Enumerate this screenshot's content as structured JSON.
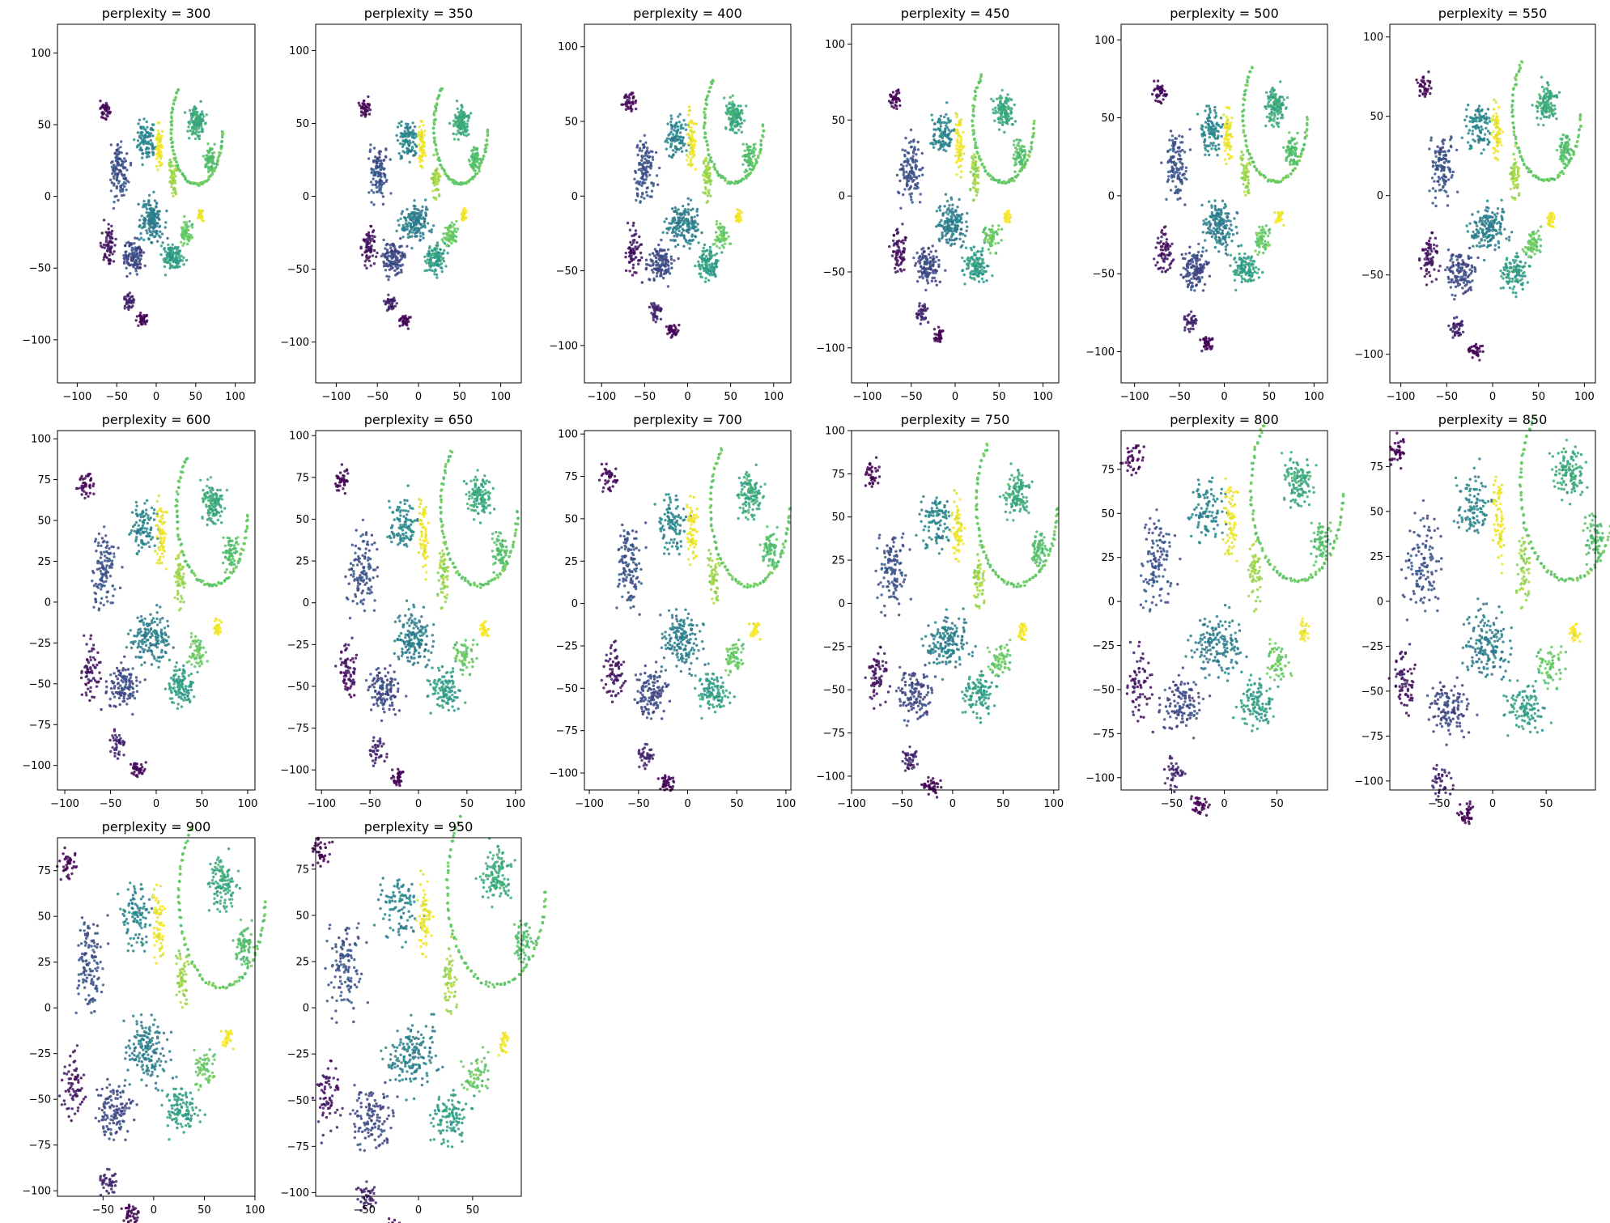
{
  "figure": {
    "colormap": "viridis",
    "colors": [
      "#440154",
      "#3b528b",
      "#21918c",
      "#5ec962",
      "#fde725"
    ]
  },
  "chart_data": [
    {
      "type": "scatter",
      "title": "perplexity = 300",
      "xlim": [
        -125,
        125
      ],
      "ylim": [
        -130,
        120
      ],
      "xticks": [
        -100,
        -50,
        0,
        50,
        100
      ],
      "yticks": [
        -100,
        -50,
        0,
        50,
        100
      ],
      "tick_labels_x": [
        "−100",
        "−50",
        "0",
        "50",
        "100"
      ],
      "tick_labels_y": [
        "−100",
        "−50",
        "0",
        "50",
        "100"
      ],
      "grid": false,
      "legend": "none"
    },
    {
      "type": "scatter",
      "title": "perplexity = 350",
      "xlim": [
        -125,
        125
      ],
      "ylim": [
        -128,
        118
      ],
      "xticks": [
        -100,
        -50,
        0,
        50,
        100
      ],
      "yticks": [
        -100,
        -50,
        0,
        50,
        100
      ],
      "tick_labels_x": [
        "−100",
        "−50",
        "0",
        "50",
        "100"
      ],
      "tick_labels_y": [
        "−100",
        "−50",
        "0",
        "50",
        "100"
      ],
      "grid": false,
      "legend": "none"
    },
    {
      "type": "scatter",
      "title": "perplexity = 400",
      "xlim": [
        -120,
        120
      ],
      "ylim": [
        -125,
        115
      ],
      "xticks": [
        -100,
        -50,
        0,
        50,
        100
      ],
      "yticks": [
        -100,
        -50,
        0,
        50,
        100
      ],
      "tick_labels_x": [
        "−100",
        "−50",
        "0",
        "50",
        "100"
      ],
      "tick_labels_y": [
        "−100",
        "−50",
        "0",
        "50",
        "100"
      ],
      "grid": false,
      "legend": "none"
    },
    {
      "type": "scatter",
      "title": "perplexity = 450",
      "xlim": [
        -118,
        118
      ],
      "ylim": [
        -123,
        113
      ],
      "xticks": [
        -100,
        -50,
        0,
        50,
        100
      ],
      "yticks": [
        -100,
        -50,
        0,
        50,
        100
      ],
      "tick_labels_x": [
        "−100",
        "−50",
        "0",
        "50",
        "100"
      ],
      "tick_labels_y": [
        "−100",
        "−50",
        "0",
        "50",
        "100"
      ],
      "grid": false,
      "legend": "none"
    },
    {
      "type": "scatter",
      "title": "perplexity = 500",
      "xlim": [
        -115,
        115
      ],
      "ylim": [
        -120,
        110
      ],
      "xticks": [
        -100,
        -50,
        0,
        50,
        100
      ],
      "yticks": [
        -100,
        -50,
        0,
        50,
        100
      ],
      "tick_labels_x": [
        "−100",
        "−50",
        "0",
        "50",
        "100"
      ],
      "tick_labels_y": [
        "−100",
        "−50",
        "0",
        "50",
        "100"
      ],
      "grid": false,
      "legend": "none"
    },
    {
      "type": "scatter",
      "title": "perplexity = 550",
      "xlim": [
        -112,
        112
      ],
      "ylim": [
        -118,
        108
      ],
      "xticks": [
        -100,
        -50,
        0,
        50,
        100
      ],
      "yticks": [
        -100,
        -50,
        0,
        50,
        100
      ],
      "tick_labels_x": [
        "−100",
        "−50",
        "0",
        "50",
        "100"
      ],
      "tick_labels_y": [
        "−100",
        "−50",
        "0",
        "50",
        "100"
      ],
      "grid": false,
      "legend": "none"
    },
    {
      "type": "scatter",
      "title": "perplexity = 600",
      "xlim": [
        -108,
        108
      ],
      "ylim": [
        -115,
        105
      ],
      "xticks": [
        -100,
        -50,
        0,
        50,
        100
      ],
      "yticks": [
        -100,
        -75,
        -50,
        -25,
        0,
        25,
        50,
        75,
        100
      ],
      "tick_labels_x": [
        "−100",
        "−50",
        "0",
        "50",
        "100"
      ],
      "tick_labels_y": [
        "−100",
        "−75",
        "−50",
        "−25",
        "0",
        "25",
        "50",
        "75",
        "100"
      ],
      "grid": false,
      "legend": "none"
    },
    {
      "type": "scatter",
      "title": "perplexity = 650",
      "xlim": [
        -106,
        106
      ],
      "ylim": [
        -112,
        103
      ],
      "xticks": [
        -100,
        -50,
        0,
        50,
        100
      ],
      "yticks": [
        -100,
        -75,
        -50,
        -25,
        0,
        25,
        50,
        75,
        100
      ],
      "tick_labels_x": [
        "−100",
        "−50",
        "0",
        "50",
        "100"
      ],
      "tick_labels_y": [
        "−100",
        "−75",
        "−50",
        "−25",
        "0",
        "25",
        "50",
        "75",
        "100"
      ],
      "grid": false,
      "legend": "none"
    },
    {
      "type": "scatter",
      "title": "perplexity = 700",
      "xlim": [
        -105,
        105
      ],
      "ylim": [
        -110,
        102
      ],
      "xticks": [
        -100,
        -50,
        0,
        50,
        100
      ],
      "yticks": [
        -100,
        -75,
        -50,
        -25,
        0,
        25,
        50,
        75,
        100
      ],
      "tick_labels_x": [
        "−100",
        "−50",
        "0",
        "50",
        "100"
      ],
      "tick_labels_y": [
        "−100",
        "−75",
        "−50",
        "−25",
        "0",
        "25",
        "50",
        "75",
        "100"
      ],
      "grid": false,
      "legend": "none"
    },
    {
      "type": "scatter",
      "title": "perplexity = 750",
      "xlim": [
        -100,
        105
      ],
      "ylim": [
        -108,
        100
      ],
      "xticks": [
        -100,
        -50,
        0,
        50,
        100
      ],
      "yticks": [
        -100,
        -75,
        -50,
        -25,
        0,
        25,
        50,
        75,
        100
      ],
      "tick_labels_x": [
        "−100",
        "−50",
        "0",
        "50",
        "100"
      ],
      "tick_labels_y": [
        "−100",
        "−75",
        "−50",
        "−25",
        "0",
        "25",
        "50",
        "75",
        "100"
      ],
      "grid": false,
      "legend": "none"
    },
    {
      "type": "scatter",
      "title": "perplexity = 800",
      "xlim": [
        -98,
        98
      ],
      "ylim": [
        -107,
        97
      ],
      "xticks": [
        -50,
        0,
        50
      ],
      "yticks": [
        -100,
        -75,
        -50,
        -25,
        0,
        25,
        50,
        75
      ],
      "tick_labels_x": [
        "−50",
        "0",
        "50"
      ],
      "tick_labels_y": [
        "−100",
        "−75",
        "−50",
        "−25",
        "0",
        "25",
        "50",
        "75"
      ],
      "grid": false,
      "legend": "none"
    },
    {
      "type": "scatter",
      "title": "perplexity = 850",
      "xlim": [
        -96,
        96
      ],
      "ylim": [
        -105,
        95
      ],
      "xticks": [
        -50,
        0,
        50
      ],
      "yticks": [
        -100,
        -75,
        -50,
        -25,
        0,
        25,
        50,
        75
      ],
      "tick_labels_x": [
        "−50",
        "0",
        "50"
      ],
      "tick_labels_y": [
        "−100",
        "−75",
        "−50",
        "−25",
        "0",
        "25",
        "50",
        "75"
      ],
      "grid": false,
      "legend": "none"
    },
    {
      "type": "scatter",
      "title": "perplexity = 900",
      "xlim": [
        -95,
        100
      ],
      "ylim": [
        -103,
        93
      ],
      "xticks": [
        -50,
        0,
        50,
        100
      ],
      "yticks": [
        -100,
        -75,
        -50,
        -25,
        0,
        25,
        50,
        75
      ],
      "tick_labels_x": [
        "−50",
        "0",
        "50",
        "100"
      ],
      "tick_labels_y": [
        "−100",
        "−75",
        "−50",
        "−25",
        "0",
        "25",
        "50",
        "75"
      ],
      "grid": false,
      "legend": "none"
    },
    {
      "type": "scatter",
      "title": "perplexity = 950",
      "xlim": [
        -95,
        95
      ],
      "ylim": [
        -102,
        92
      ],
      "xticks": [
        -50,
        0,
        50
      ],
      "yticks": [
        -100,
        -75,
        -50,
        -25,
        0,
        25,
        50,
        75
      ],
      "tick_labels_x": [
        "−50",
        "0",
        "50"
      ],
      "tick_labels_y": [
        "−100",
        "−75",
        "−50",
        "−25",
        "0",
        "25",
        "50",
        "75"
      ],
      "grid": false,
      "legend": "none"
    }
  ]
}
